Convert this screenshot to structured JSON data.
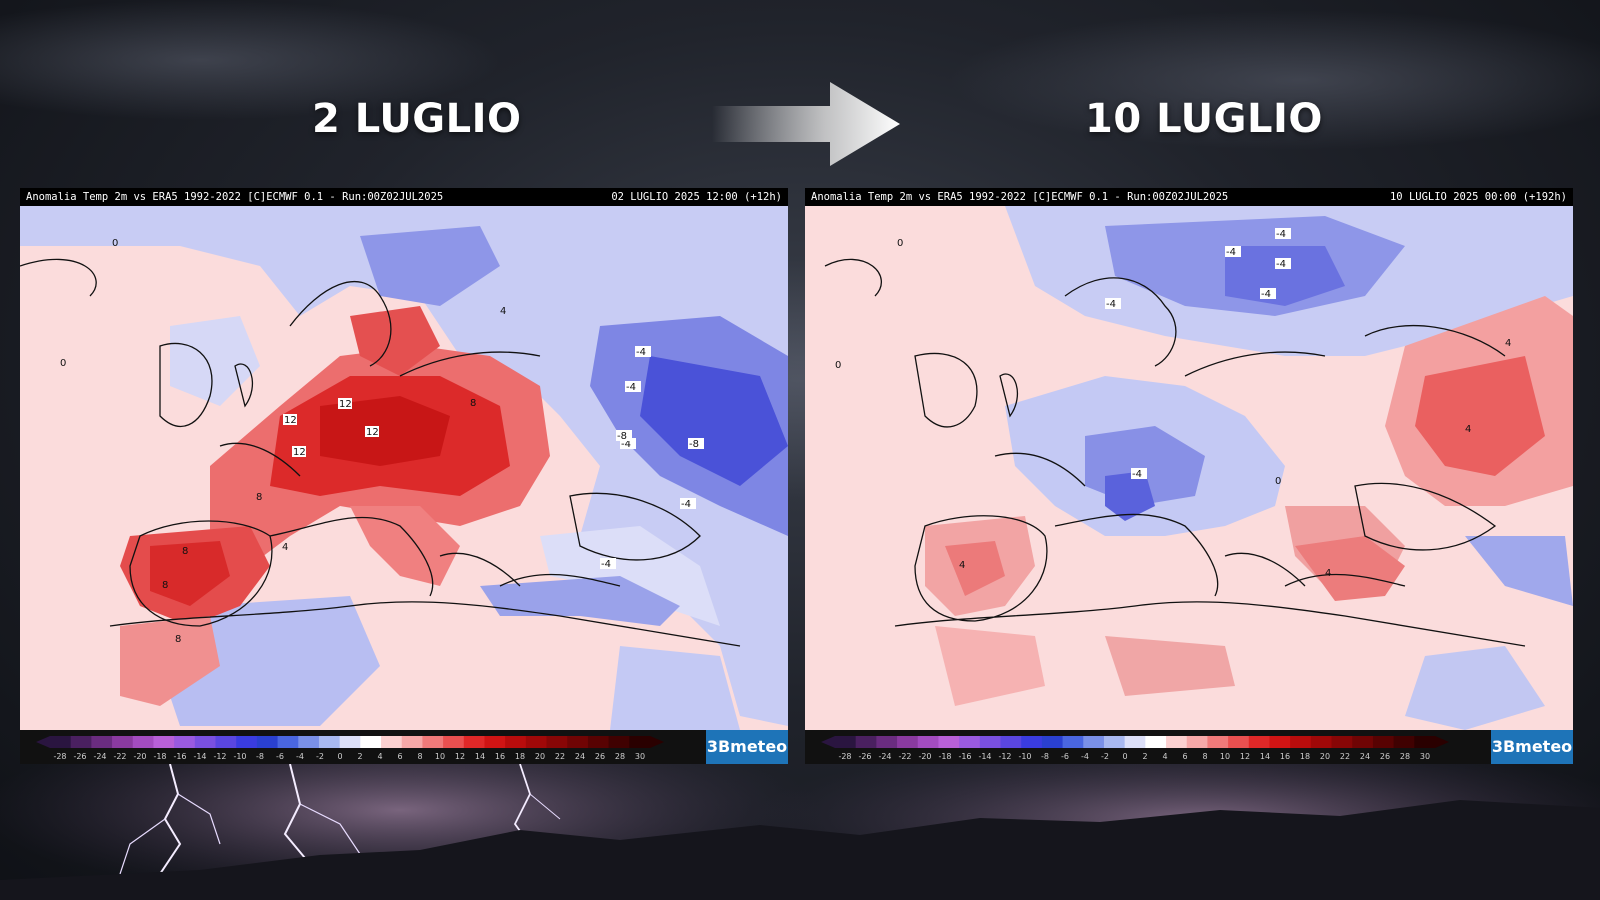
{
  "headings": {
    "left": "2 LUGLIO",
    "right": "10 LUGLIO"
  },
  "panels": [
    {
      "header_left": "Anomalia Temp 2m vs ERA5 1992-2022 [C]ECMWF 0.1 - Run:00Z02JUL2025",
      "header_right": "02 LUGLIO 2025 12:00 (+12h)",
      "labels": [
        "12",
        "12",
        "12",
        "12",
        "8",
        "8",
        "8",
        "8",
        "8",
        "4",
        "4",
        "-4",
        "-4",
        "-4",
        "-4",
        "-8",
        "-8",
        "-4",
        "0",
        "0"
      ]
    },
    {
      "header_left": "Anomalia Temp 2m vs ERA5 1992-2022 [C]ECMWF 0.1 - Run:00Z02JUL2025",
      "header_right": "10 LUGLIO 2025 00:00 (+192h)",
      "labels": [
        "-4",
        "-4",
        "-4",
        "-4",
        "-4",
        "4",
        "4",
        "4",
        "4",
        "-4",
        "0",
        "0",
        "0"
      ]
    }
  ],
  "colorbar": {
    "ticks": [
      "-28",
      "-26",
      "-24",
      "-22",
      "-20",
      "-18",
      "-16",
      "-14",
      "-12",
      "-10",
      "-8",
      "-6",
      "-4",
      "-2",
      "0",
      "2",
      "4",
      "6",
      "8",
      "10",
      "12",
      "14",
      "16",
      "18",
      "20",
      "22",
      "24",
      "26",
      "28",
      "30"
    ],
    "colors": [
      "#2a1540",
      "#4a2060",
      "#6a2c80",
      "#8a3aa0",
      "#a34cc0",
      "#b860d8",
      "#9a5ae0",
      "#7a50e0",
      "#5a46e0",
      "#3a3ce0",
      "#2a40d0",
      "#4a66e0",
      "#7a90e8",
      "#a8b8f0",
      "#dcdff8",
      "#ffffff",
      "#fbd0d0",
      "#f6a8a8",
      "#f07a7a",
      "#ea5050",
      "#e02828",
      "#d01414",
      "#b80c0c",
      "#a00808",
      "#880606",
      "#700404",
      "#580202",
      "#400101",
      "#2a0000"
    ]
  },
  "logo": "3Bmeteo"
}
